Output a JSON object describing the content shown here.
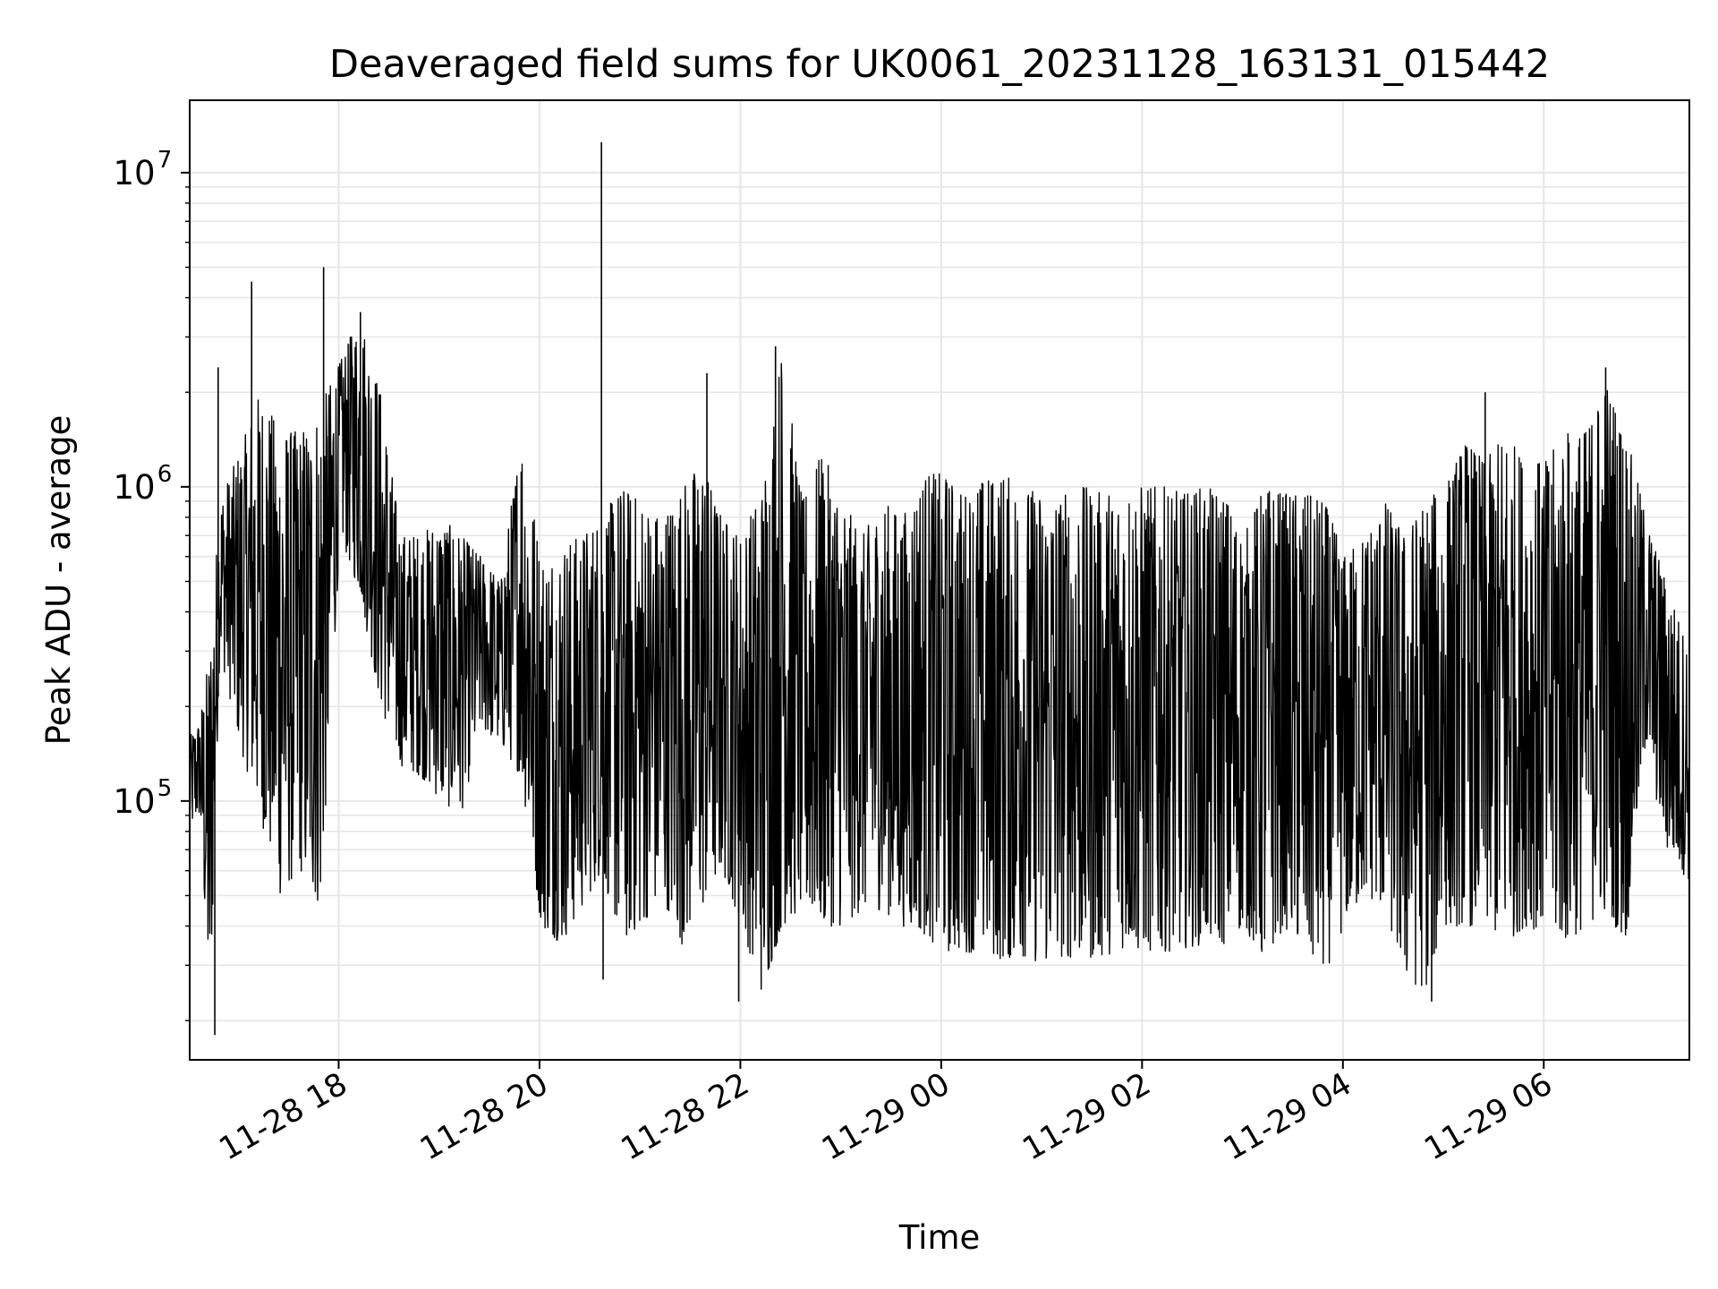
{
  "chart_data": {
    "type": "line",
    "title": "Deaveraged field sums for UK0061_20231128_163131_015442",
    "xlabel": "Time",
    "ylabel": "Peak ADU - average",
    "y_scale": "log",
    "xlim": [
      "2023-11-28 16:31",
      "2023-11-29 07:27"
    ],
    "ylim": [
      15000,
      17000000
    ],
    "grid": true,
    "line_color": "#000000",
    "x_ticks": [
      "11-28 18",
      "11-28 20",
      "11-28 22",
      "11-29 00",
      "11-29 02",
      "11-29 04",
      "11-29 06"
    ],
    "x_tick_times": [
      "2023-11-28 18:00",
      "2023-11-28 20:00",
      "2023-11-28 22:00",
      "2023-11-29 00:00",
      "2023-11-29 02:00",
      "2023-11-29 04:00",
      "2023-11-29 06:00"
    ],
    "y_ticks": [
      {
        "value": 100000,
        "base": "10",
        "exp": "5"
      },
      {
        "value": 1000000,
        "base": "10",
        "exp": "6"
      },
      {
        "value": 10000000,
        "base": "10",
        "exp": "7"
      }
    ],
    "series": [
      {
        "x": [
          "2023-11-28 16:31",
          "2023-11-28 16:37",
          "2023-11-28 16:43",
          "2023-11-28 16:49",
          "2023-11-28 17:01",
          "2023-11-28 17:13",
          "2023-11-28 17:25",
          "2023-11-28 17:37",
          "2023-11-28 17:49",
          "2023-11-28 18:01",
          "2023-11-28 18:13",
          "2023-11-28 18:25",
          "2023-11-28 18:37",
          "2023-11-28 18:49",
          "2023-11-28 19:01",
          "2023-11-28 19:13",
          "2023-11-28 19:25",
          "2023-11-28 19:37",
          "2023-11-28 19:49",
          "2023-11-28 20:01",
          "2023-11-28 20:13",
          "2023-11-28 20:25",
          "2023-11-28 20:37",
          "2023-11-28 20:49",
          "2023-11-28 21:01",
          "2023-11-28 21:13",
          "2023-11-28 21:25",
          "2023-11-28 21:37",
          "2023-11-28 21:49",
          "2023-11-28 22:01",
          "2023-11-28 22:13",
          "2023-11-28 22:25",
          "2023-11-28 22:37",
          "2023-11-28 22:49",
          "2023-11-28 23:01",
          "2023-11-28 23:13",
          "2023-11-28 23:25",
          "2023-11-28 23:37",
          "2023-11-28 23:49",
          "2023-11-29 00:01",
          "2023-11-29 00:13",
          "2023-11-29 00:25",
          "2023-11-29 00:37",
          "2023-11-29 00:49",
          "2023-11-29 01:01",
          "2023-11-29 01:13",
          "2023-11-29 01:25",
          "2023-11-29 01:37",
          "2023-11-29 01:49",
          "2023-11-29 02:01",
          "2023-11-29 02:13",
          "2023-11-29 02:25",
          "2023-11-29 02:37",
          "2023-11-29 02:49",
          "2023-11-29 03:01",
          "2023-11-29 03:13",
          "2023-11-29 03:25",
          "2023-11-29 03:37",
          "2023-11-29 03:49",
          "2023-11-29 04:01",
          "2023-11-29 04:13",
          "2023-11-29 04:25",
          "2023-11-29 04:37",
          "2023-11-29 04:49",
          "2023-11-29 05:01",
          "2023-11-29 05:13",
          "2023-11-29 05:25",
          "2023-11-29 05:37",
          "2023-11-29 05:49",
          "2023-11-29 06:01",
          "2023-11-29 06:13",
          "2023-11-29 06:25",
          "2023-11-29 06:37",
          "2023-11-29 06:49",
          "2023-11-29 07:01",
          "2023-11-29 07:13",
          "2023-11-29 07:27"
        ],
        "low": [
          80000,
          90000,
          20000,
          300000,
          150000,
          90000,
          50000,
          60000,
          45000,
          700000,
          450000,
          200000,
          130000,
          120000,
          100000,
          90000,
          170000,
          150000,
          120000,
          40000,
          35000,
          45000,
          60000,
          35000,
          40000,
          50000,
          35000,
          45000,
          60000,
          40000,
          24000,
          40000,
          45000,
          40000,
          40000,
          45000,
          45000,
          40000,
          38000,
          33000,
          33000,
          33000,
          31000,
          32000,
          30000,
          32000,
          31000,
          32000,
          34000,
          33000,
          33000,
          34000,
          35000,
          35000,
          40000,
          30000,
          40000,
          32000,
          28000,
          40000,
          50000,
          45000,
          27000,
          25000,
          40000,
          40000,
          40000,
          35000,
          40000,
          38000,
          35000,
          40000,
          45000,
          35000,
          150000,
          70000,
          55000
        ],
        "high": [
          160000,
          180000,
          300000,
          900000,
          1300000,
          2000000,
          1500000,
          1500000,
          1800000,
          2500000,
          3500000,
          2000000,
          700000,
          700000,
          800000,
          700000,
          600000,
          500000,
          1500000,
          600000,
          650000,
          700000,
          800000,
          1000000,
          900000,
          800000,
          1000000,
          1200000,
          800000,
          700000,
          1000000,
          2800000,
          900000,
          1300000,
          900000,
          700000,
          900000,
          800000,
          1100000,
          1100000,
          950000,
          1050000,
          1100000,
          1000000,
          950000,
          950000,
          1000000,
          950000,
          1000000,
          1000000,
          1000000,
          950000,
          1000000,
          950000,
          700000,
          1000000,
          950000,
          950000,
          900000,
          600000,
          700000,
          900000,
          700000,
          900000,
          1000000,
          1400000,
          1200000,
          1500000,
          1200000,
          1200000,
          1500000,
          1500000,
          2200000,
          1500000,
          800000,
          500000,
          300000
        ],
        "spikes": [
          {
            "x": "2023-11-28 16:46",
            "y": 18000
          },
          {
            "x": "2023-11-28 16:48",
            "y": 2400000
          },
          {
            "x": "2023-11-28 17:08",
            "y": 4500000
          },
          {
            "x": "2023-11-28 17:51",
            "y": 5000000
          },
          {
            "x": "2023-11-28 18:07",
            "y": 3000000
          },
          {
            "x": "2023-11-28 18:13",
            "y": 3600000
          },
          {
            "x": "2023-11-28 20:37",
            "y": 12500000
          },
          {
            "x": "2023-11-28 20:38",
            "y": 27000
          },
          {
            "x": "2023-11-28 21:40",
            "y": 2300000
          },
          {
            "x": "2023-11-28 21:59",
            "y": 23000
          },
          {
            "x": "2023-11-28 22:21",
            "y": 2800000
          },
          {
            "x": "2023-11-29 04:53",
            "y": 23000
          },
          {
            "x": "2023-11-29 05:25",
            "y": 2000000
          },
          {
            "x": "2023-11-29 06:37",
            "y": 2400000
          }
        ]
      }
    ]
  }
}
